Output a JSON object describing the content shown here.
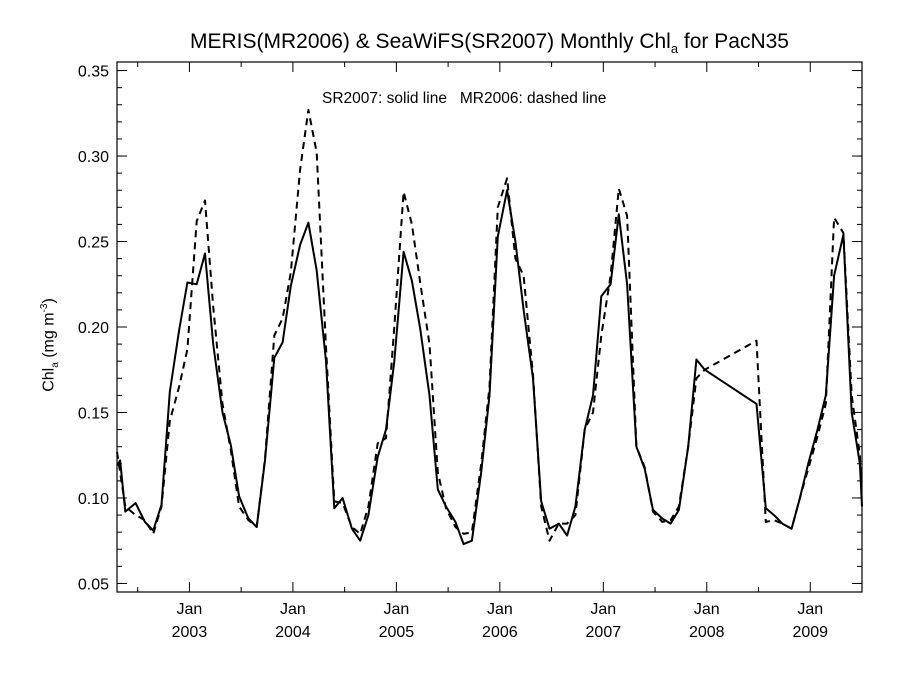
{
  "chart_data": {
    "type": "line",
    "title": {
      "main": "MERIS(MR2006) & SeaWiFS(SR2007) Monthly Chl",
      "sub": "a",
      "tail": " for PacN35"
    },
    "annotation": "SR2007: solid line   MR2006: dashed line",
    "ylabel": {
      "pre": "Chl",
      "sub": "a",
      "mid": " (mg m",
      "sup": "-3",
      "post": ")"
    },
    "xlim": [
      2002.3,
      2009.5
    ],
    "ylim": [
      0.045,
      0.355
    ],
    "yticks": [
      0.05,
      0.1,
      0.15,
      0.2,
      0.25,
      0.3,
      0.35
    ],
    "ytick_labels": [
      "0.05",
      "0.10",
      "0.15",
      "0.20",
      "0.25",
      "0.30",
      "0.35"
    ],
    "xticks": [
      {
        "x": 2003.0,
        "month": "Jan",
        "year": "2003"
      },
      {
        "x": 2004.0,
        "month": "Jan",
        "year": "2004"
      },
      {
        "x": 2005.0,
        "month": "Jan",
        "year": "2005"
      },
      {
        "x": 2006.0,
        "month": "Jan",
        "year": "2006"
      },
      {
        "x": 2007.0,
        "month": "Jan",
        "year": "2007"
      },
      {
        "x": 2008.0,
        "month": "Jan",
        "year": "2008"
      },
      {
        "x": 2009.0,
        "month": "Jan",
        "year": "2009"
      }
    ],
    "series": [
      {
        "name": "SR2007",
        "style": "solid",
        "x": [
          2002.3,
          2002.33,
          2002.38,
          2002.48,
          2002.57,
          2002.65,
          2002.73,
          2002.81,
          2002.9,
          2002.98,
          2003.07,
          2003.15,
          2003.23,
          2003.32,
          2003.4,
          2003.48,
          2003.57,
          2003.65,
          2003.73,
          2003.82,
          2003.9,
          2003.98,
          2004.07,
          2004.15,
          2004.23,
          2004.32,
          2004.4,
          2004.48,
          2004.57,
          2004.65,
          2004.73,
          2004.82,
          2004.9,
          2004.98,
          2005.07,
          2005.15,
          2005.23,
          2005.32,
          2005.4,
          2005.48,
          2005.57,
          2005.65,
          2005.73,
          2005.82,
          2005.9,
          2005.98,
          2006.07,
          2006.15,
          2006.23,
          2006.32,
          2006.4,
          2006.48,
          2006.57,
          2006.65,
          2006.73,
          2006.82,
          2006.9,
          2006.98,
          2007.07,
          2007.15,
          2007.23,
          2007.32,
          2007.4,
          2007.48,
          2007.57,
          2007.65,
          2007.73,
          2007.82,
          2007.9,
          2007.98,
          2008.48,
          2008.57,
          2008.65,
          2008.73,
          2008.82,
          2008.9,
          2008.98,
          2009.07,
          2009.15,
          2009.23,
          2009.32,
          2009.4,
          2009.48,
          2009.5
        ],
        "y": [
          0.119,
          0.122,
          0.092,
          0.097,
          0.086,
          0.081,
          0.096,
          0.162,
          0.198,
          0.226,
          0.225,
          0.243,
          0.19,
          0.15,
          0.131,
          0.101,
          0.088,
          0.083,
          0.122,
          0.182,
          0.191,
          0.224,
          0.248,
          0.261,
          0.233,
          0.18,
          0.094,
          0.1,
          0.082,
          0.075,
          0.09,
          0.124,
          0.14,
          0.18,
          0.244,
          0.227,
          0.199,
          0.16,
          0.105,
          0.095,
          0.086,
          0.073,
          0.075,
          0.115,
          0.16,
          0.253,
          0.28,
          0.25,
          0.21,
          0.17,
          0.098,
          0.082,
          0.085,
          0.078,
          0.095,
          0.14,
          0.16,
          0.218,
          0.225,
          0.266,
          0.225,
          0.13,
          0.117,
          0.093,
          0.088,
          0.085,
          0.093,
          0.13,
          0.181,
          0.175,
          0.155,
          0.094,
          0.09,
          0.085,
          0.082,
          0.1,
          0.12,
          0.14,
          0.16,
          0.23,
          0.254,
          0.15,
          0.12,
          0.095
        ]
      },
      {
        "name": "MR2006",
        "style": "dashed",
        "x": [
          2002.3,
          2002.33,
          2002.38,
          2002.48,
          2002.57,
          2002.65,
          2002.73,
          2002.81,
          2002.9,
          2002.98,
          2003.07,
          2003.15,
          2003.23,
          2003.32,
          2003.4,
          2003.48,
          2003.57,
          2003.65,
          2003.73,
          2003.82,
          2003.9,
          2003.98,
          2004.07,
          2004.15,
          2004.23,
          2004.32,
          2004.4,
          2004.48,
          2004.57,
          2004.65,
          2004.73,
          2004.82,
          2004.9,
          2004.98,
          2005.07,
          2005.15,
          2005.23,
          2005.32,
          2005.4,
          2005.48,
          2005.57,
          2005.65,
          2005.73,
          2005.82,
          2005.9,
          2005.98,
          2006.07,
          2006.15,
          2006.23,
          2006.32,
          2006.4,
          2006.48,
          2006.57,
          2006.65,
          2006.73,
          2006.82,
          2006.9,
          2006.98,
          2007.07,
          2007.15,
          2007.23,
          2007.32,
          2007.4,
          2007.48,
          2007.57,
          2007.65,
          2007.73,
          2007.82,
          2007.9,
          2007.98,
          2008.48,
          2008.57,
          2008.65,
          2008.73,
          2008.82,
          2008.9,
          2008.98,
          2009.07,
          2009.15,
          2009.23,
          2009.32,
          2009.4,
          2009.48,
          2009.5
        ],
        "y": [
          0.127,
          0.115,
          0.095,
          0.09,
          0.087,
          0.079,
          0.095,
          0.145,
          0.165,
          0.187,
          0.262,
          0.274,
          0.212,
          0.155,
          0.128,
          0.095,
          0.087,
          0.083,
          0.123,
          0.195,
          0.205,
          0.232,
          0.292,
          0.327,
          0.302,
          0.188,
          0.098,
          0.097,
          0.083,
          0.079,
          0.095,
          0.132,
          0.135,
          0.2,
          0.279,
          0.26,
          0.226,
          0.19,
          0.115,
          0.094,
          0.083,
          0.079,
          0.08,
          0.12,
          0.165,
          0.27,
          0.287,
          0.24,
          0.23,
          0.172,
          0.095,
          0.075,
          0.085,
          0.085,
          0.09,
          0.14,
          0.15,
          0.195,
          0.23,
          0.281,
          0.265,
          0.13,
          0.118,
          0.092,
          0.086,
          0.087,
          0.095,
          0.13,
          0.17,
          0.175,
          0.192,
          0.086,
          0.087,
          0.085,
          0.082,
          0.1,
          0.117,
          0.136,
          0.155,
          0.264,
          0.255,
          0.16,
          0.125,
          0.095
        ]
      }
    ]
  }
}
